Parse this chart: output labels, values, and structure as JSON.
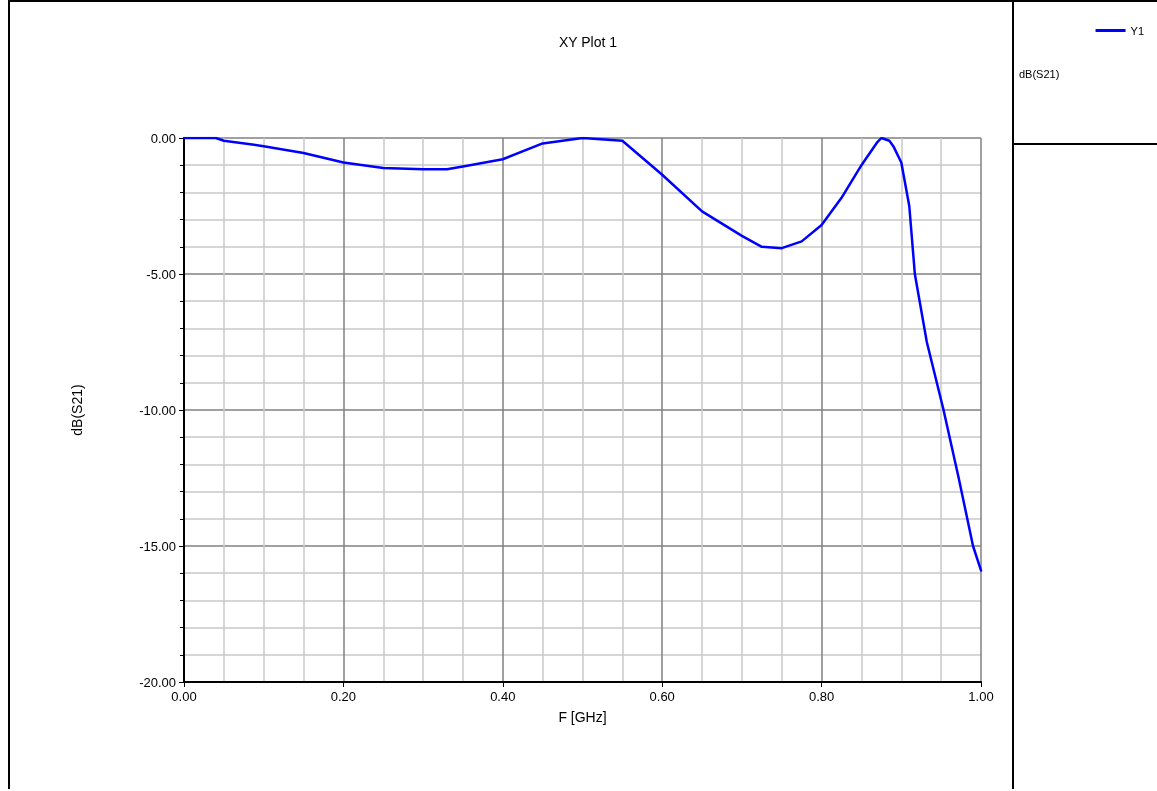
{
  "chart_data": {
    "type": "line",
    "title": "XY Plot 1",
    "xlabel": "F [GHz]",
    "ylabel": "dB(S21)",
    "legend_title": "dB(S21)",
    "legend": "top right",
    "grid": true,
    "marker": "none",
    "line_style": "solid",
    "xlim": [
      0,
      1
    ],
    "ylim": [
      -20,
      0
    ],
    "xticks": [
      {
        "value": 0,
        "label": "0.00"
      },
      {
        "value": 0.2,
        "label": "0.20"
      },
      {
        "value": 0.4,
        "label": "0.40"
      },
      {
        "value": 0.6,
        "label": "0.60"
      },
      {
        "value": 0.8,
        "label": "0.80"
      },
      {
        "value": 1,
        "label": "1.00"
      }
    ],
    "yticks": [
      {
        "value": -20,
        "label": "-20.00"
      },
      {
        "value": -15,
        "label": "-15.00"
      },
      {
        "value": -10,
        "label": "-10.00"
      },
      {
        "value": -5,
        "label": "-5.00"
      },
      {
        "value": 0,
        "label": "0.00"
      }
    ],
    "series": [
      {
        "name": "Y1",
        "color": "#0000ff",
        "x": [
          0,
          0.04,
          0.05,
          0.1,
          0.15,
          0.2,
          0.25,
          0.3,
          0.33,
          0.35,
          0.4,
          0.45,
          0.5,
          0.55,
          0.6,
          0.65,
          0.7,
          0.725,
          0.75,
          0.775,
          0.8,
          0.825,
          0.85,
          0.87,
          0.875,
          0.885,
          0.89,
          0.9,
          0.91,
          0.917,
          0.932,
          0.953,
          0.972,
          0.99,
          1.0
        ],
        "values": [
          0,
          0,
          -0.1,
          -0.3,
          -0.55,
          -0.9,
          -1.1,
          -1.15,
          -1.15,
          -1.05,
          -0.78,
          -0.2,
          0,
          -0.1,
          -1.35,
          -2.7,
          -3.6,
          -4.0,
          -4.05,
          -3.8,
          -3.2,
          -2.2,
          -1.0,
          -0.15,
          0,
          -0.1,
          -0.3,
          -0.9,
          -2.5,
          -5,
          -7.5,
          -10,
          -12.5,
          -15,
          -15.9
        ]
      }
    ]
  }
}
